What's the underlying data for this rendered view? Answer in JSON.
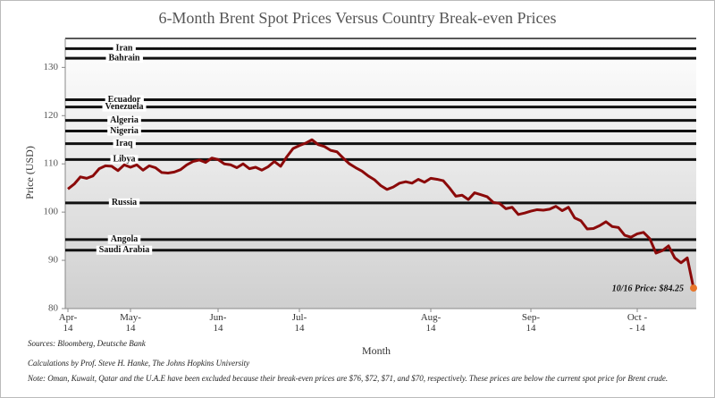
{
  "chart_data": {
    "type": "line",
    "title": "6-Month Brent Spot Prices Versus Country Break-even Prices",
    "y_label": "Price (USD)",
    "x_label": "Month",
    "ylim": [
      80,
      136
    ],
    "yticks": [
      80,
      90,
      100,
      110,
      120,
      130
    ],
    "categories": [
      "Apr-\n14",
      null,
      null,
      null,
      null,
      null,
      null,
      null,
      null,
      null,
      "May-\n14",
      null,
      null,
      null,
      null,
      null,
      null,
      null,
      null,
      null,
      null,
      null,
      null,
      null,
      "Jun-\n14",
      null,
      null,
      null,
      null,
      null,
      null,
      null,
      null,
      null,
      null,
      null,
      null,
      "Jul-\n14",
      null,
      null,
      null,
      null,
      null,
      null,
      null,
      null,
      null,
      null,
      null,
      null,
      null,
      null,
      null,
      null,
      null,
      null,
      null,
      null,
      "Aug-\n14",
      null,
      null,
      null,
      null,
      null,
      null,
      null,
      null,
      null,
      null,
      null,
      null,
      null,
      null,
      null,
      "Sep-\n14",
      null,
      null,
      null,
      null,
      null,
      null,
      null,
      null,
      null,
      null,
      null,
      null,
      null,
      null,
      null,
      null,
      "Oct -\n- 14",
      null,
      null,
      null,
      null,
      null,
      null,
      null,
      null,
      null
    ],
    "series": [
      {
        "name": "Brent Spot Price",
        "color": "#8b0a0a",
        "values": [
          104.8,
          105.8,
          107.3,
          107.0,
          107.5,
          109.0,
          109.6,
          109.5,
          108.6,
          109.8,
          109.3,
          109.8,
          108.7,
          109.6,
          109.2,
          108.2,
          108.1,
          108.3,
          108.8,
          109.8,
          110.5,
          110.8,
          110.3,
          111.2,
          110.9,
          110.0,
          109.8,
          109.2,
          110.0,
          109.0,
          109.3,
          108.7,
          109.4,
          110.5,
          109.5,
          111.5,
          113.2,
          113.8,
          114.3,
          115.0,
          114.0,
          113.6,
          112.8,
          112.5,
          111.2,
          110.0,
          109.2,
          108.5,
          107.5,
          106.7,
          105.5,
          104.7,
          105.2,
          106.0,
          106.3,
          106.0,
          106.8,
          106.2,
          107.0,
          106.8,
          106.5,
          105.0,
          103.3,
          103.5,
          102.6,
          104.0,
          103.6,
          103.2,
          102.0,
          101.8,
          100.7,
          101.0,
          99.5,
          99.8,
          100.2,
          100.5,
          100.4,
          100.6,
          101.2,
          100.3,
          101.0,
          98.8,
          98.2,
          96.5,
          96.6,
          97.2,
          98.0,
          97.0,
          96.8,
          95.2,
          94.8,
          95.5,
          95.8,
          94.5,
          91.5,
          92.0,
          93.0,
          90.5,
          89.5,
          90.5,
          84.25
        ]
      }
    ],
    "last_point_color": "#e8762b",
    "break_even": [
      {
        "name": "Iran",
        "value": 133.9
      },
      {
        "name": "Bahrain",
        "value": 131.9
      },
      {
        "name": "Ecuador",
        "value": 123.3
      },
      {
        "name": "Venezuela",
        "value": 121.8
      },
      {
        "name": "Algeria",
        "value": 119.0
      },
      {
        "name": "Nigeria",
        "value": 116.8
      },
      {
        "name": "Iraq",
        "value": 114.2
      },
      {
        "name": "Libya",
        "value": 110.9
      },
      {
        "name": "Russia",
        "value": 101.9
      },
      {
        "name": "Angola",
        "value": 94.3
      },
      {
        "name": "Saudi Arabia",
        "value": 92.1
      }
    ],
    "break_even_color": "#111111",
    "annotation": "10/16 Price: $84.25",
    "sources": "Sources: Bloomberg, Deutsche Bank",
    "credit": "Calculations by Prof. Steve H. Hanke, The Johns Hopkins University",
    "note": "Note: Oman, Kuwait, Qatar and the U.A.E have been excluded because their break-even prices are $76, $72, $71, and $70, respectively. These prices are below the current spot price for Brent crude."
  }
}
